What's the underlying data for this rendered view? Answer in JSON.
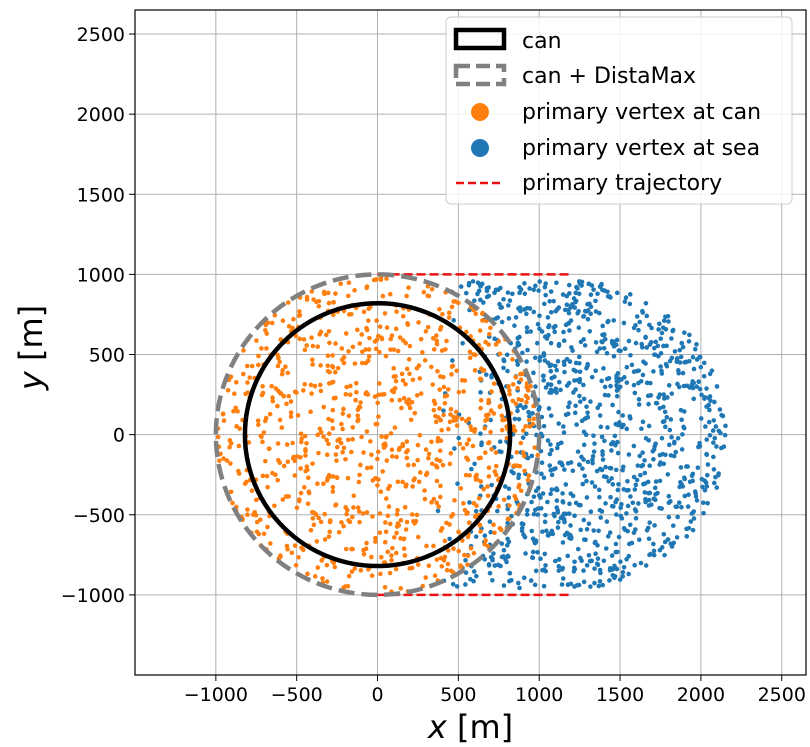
{
  "chart_data": {
    "type": "scatter",
    "xlabel_var": "x",
    "xlabel_unit": " [m]",
    "ylabel_var": "y",
    "ylabel_unit": " [m]",
    "xlim": [
      -1500,
      2650
    ],
    "ylim": [
      -1500,
      2650
    ],
    "xticks": [
      -1000,
      -500,
      0,
      500,
      1000,
      1500,
      2000,
      2500
    ],
    "yticks": [
      -1000,
      -500,
      0,
      500,
      1000,
      1500,
      2000,
      2500
    ],
    "xtick_labels": [
      "−1000",
      "−500",
      "0",
      "500",
      "1000",
      "1500",
      "2000",
      "2500"
    ],
    "ytick_labels": [
      "−1000",
      "−500",
      "0",
      "500",
      "1000",
      "1500",
      "2000",
      "2500"
    ],
    "grid": true,
    "legend_position": "top-right",
    "legend": {
      "can": "can",
      "can_distamax": "can + DistaMax",
      "vertex_can": "primary vertex at can",
      "vertex_sea": "primary vertex at sea",
      "trajectory": "primary trajectory"
    },
    "can_circle": {
      "center": [
        0,
        0
      ],
      "radius": 820,
      "color": "#000000"
    },
    "distamax_circle": {
      "center": [
        0,
        0
      ],
      "radius": 1000,
      "color": "#808080"
    },
    "trajectory_lines": [
      {
        "x": [
          0,
          1200
        ],
        "y": [
          1000,
          1000
        ]
      },
      {
        "x": [
          0,
          1200
        ],
        "y": [
          -1000,
          -1000
        ]
      }
    ],
    "series": [
      {
        "name": "primary vertex at can",
        "color": "#ff7f0e",
        "count": 950,
        "region": "disk center (0,0), radius 1000"
      },
      {
        "name": "primary vertex at sea",
        "color": "#1f77b4",
        "count": 1100,
        "region": "stadium x 0..1200 ± 1000, within ~950 of axis; excluded from can disk"
      }
    ],
    "colors": {
      "can_series": "#ff7f0e",
      "sea_series": "#1f77b4",
      "trajectory": "#ee1111",
      "grid": "#b0b0b0"
    }
  }
}
